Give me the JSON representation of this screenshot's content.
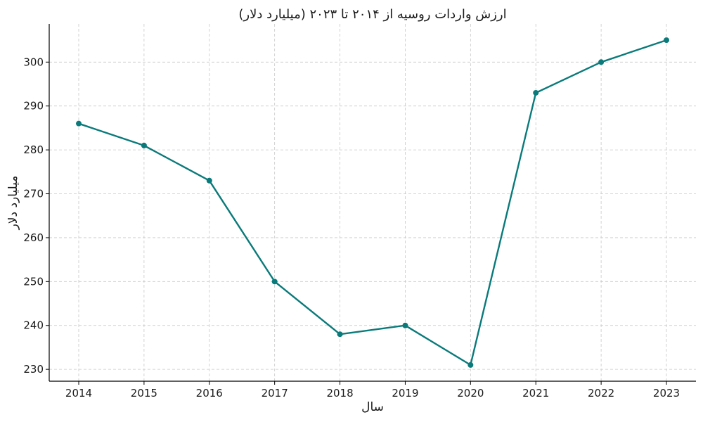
{
  "chart_data": {
    "type": "line",
    "title": "ارزش واردات روسیه از ۲۰۱۴ تا ۲۰۲۳ (میلیارد دلار)",
    "xlabel": "سال",
    "ylabel": "میلیارد دلار",
    "x": [
      "2014",
      "2015",
      "2016",
      "2017",
      "2018",
      "2019",
      "2020",
      "2021",
      "2022",
      "2023"
    ],
    "series": [
      {
        "values": [
          286,
          281,
          273,
          250,
          238,
          240,
          231,
          293,
          300,
          305
        ],
        "color": "#0a7a7a",
        "marker": "circle"
      }
    ],
    "y_ticks": [
      230,
      240,
      250,
      260,
      270,
      280,
      290,
      300
    ],
    "ylim": [
      227.3,
      308.7
    ],
    "grid": true,
    "legend": "none"
  }
}
